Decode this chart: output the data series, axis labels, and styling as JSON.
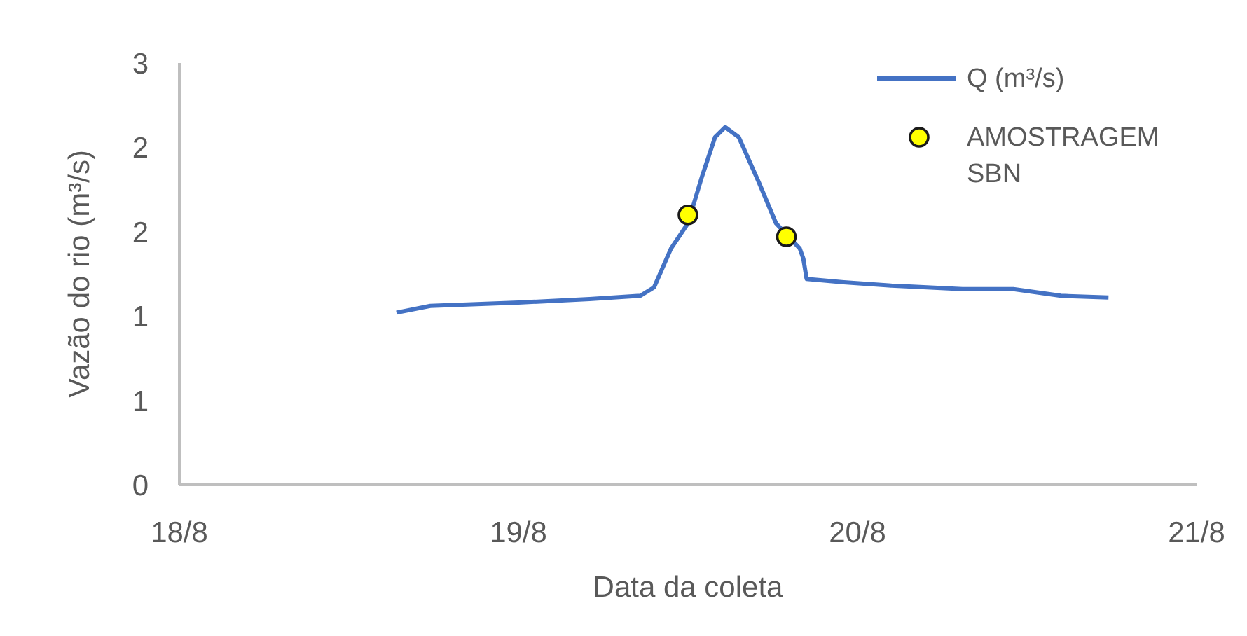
{
  "chart_data": {
    "type": "line",
    "xlabel": "Data da coleta",
    "ylabel": "Vazão do rio (m³/s)",
    "xlim": [
      "--08-18",
      "--08-21"
    ],
    "xticks": [
      {
        "value": "--08-18",
        "label": "18/8"
      },
      {
        "value": "--08-19",
        "label": "19/8"
      },
      {
        "value": "--08-20",
        "label": "20/8"
      },
      {
        "value": "--08-21",
        "label": "21/8"
      }
    ],
    "ylim": [
      0,
      2.5
    ],
    "yticks": [
      0,
      {
        "value": 0.5,
        "label": "1"
      },
      1,
      {
        "value": 1.5,
        "label": "2"
      },
      2,
      {
        "value": 2.5,
        "label": "3"
      }
    ],
    "legend": "top right",
    "series": [
      {
        "name": "Q (m³/s)",
        "color": "#4472c4",
        "marker": "none",
        "x": [
          "--08-18T15:22",
          "--08-18T17:46",
          "--08-19T00:00",
          "--08-19T05:02",
          "--08-19T08:38",
          "--08-19T09:36",
          "--08-19T10:48",
          "--08-19T12:00",
          "--08-19T12:58",
          "--08-19T13:55",
          "--08-19T14:38",
          "--08-19T15:36",
          "--08-19T17:02",
          "--08-19T18:14",
          "--08-19T19:55",
          "--08-19T20:10",
          "--08-19T20:24",
          "--08-19T23:02",
          "--08-20T02:24",
          "--08-20T07:26",
          "--08-20T11:02",
          "--08-20T14:24",
          "--08-20T17:46"
        ],
        "values": [
          1.02,
          1.06,
          1.08,
          1.1,
          1.12,
          1.17,
          1.4,
          1.55,
          1.82,
          2.06,
          2.12,
          2.06,
          1.79,
          1.55,
          1.4,
          1.34,
          1.22,
          1.2,
          1.18,
          1.16,
          1.16,
          1.12,
          1.11
        ]
      },
      {
        "name": "AMOSTRAGEM SBN",
        "type": "scatter",
        "color": "#ffff00",
        "marker": "circle",
        "x": [
          "--08-19T12:00",
          "--08-19T18:58"
        ],
        "values": [
          1.6,
          1.47
        ]
      }
    ]
  }
}
